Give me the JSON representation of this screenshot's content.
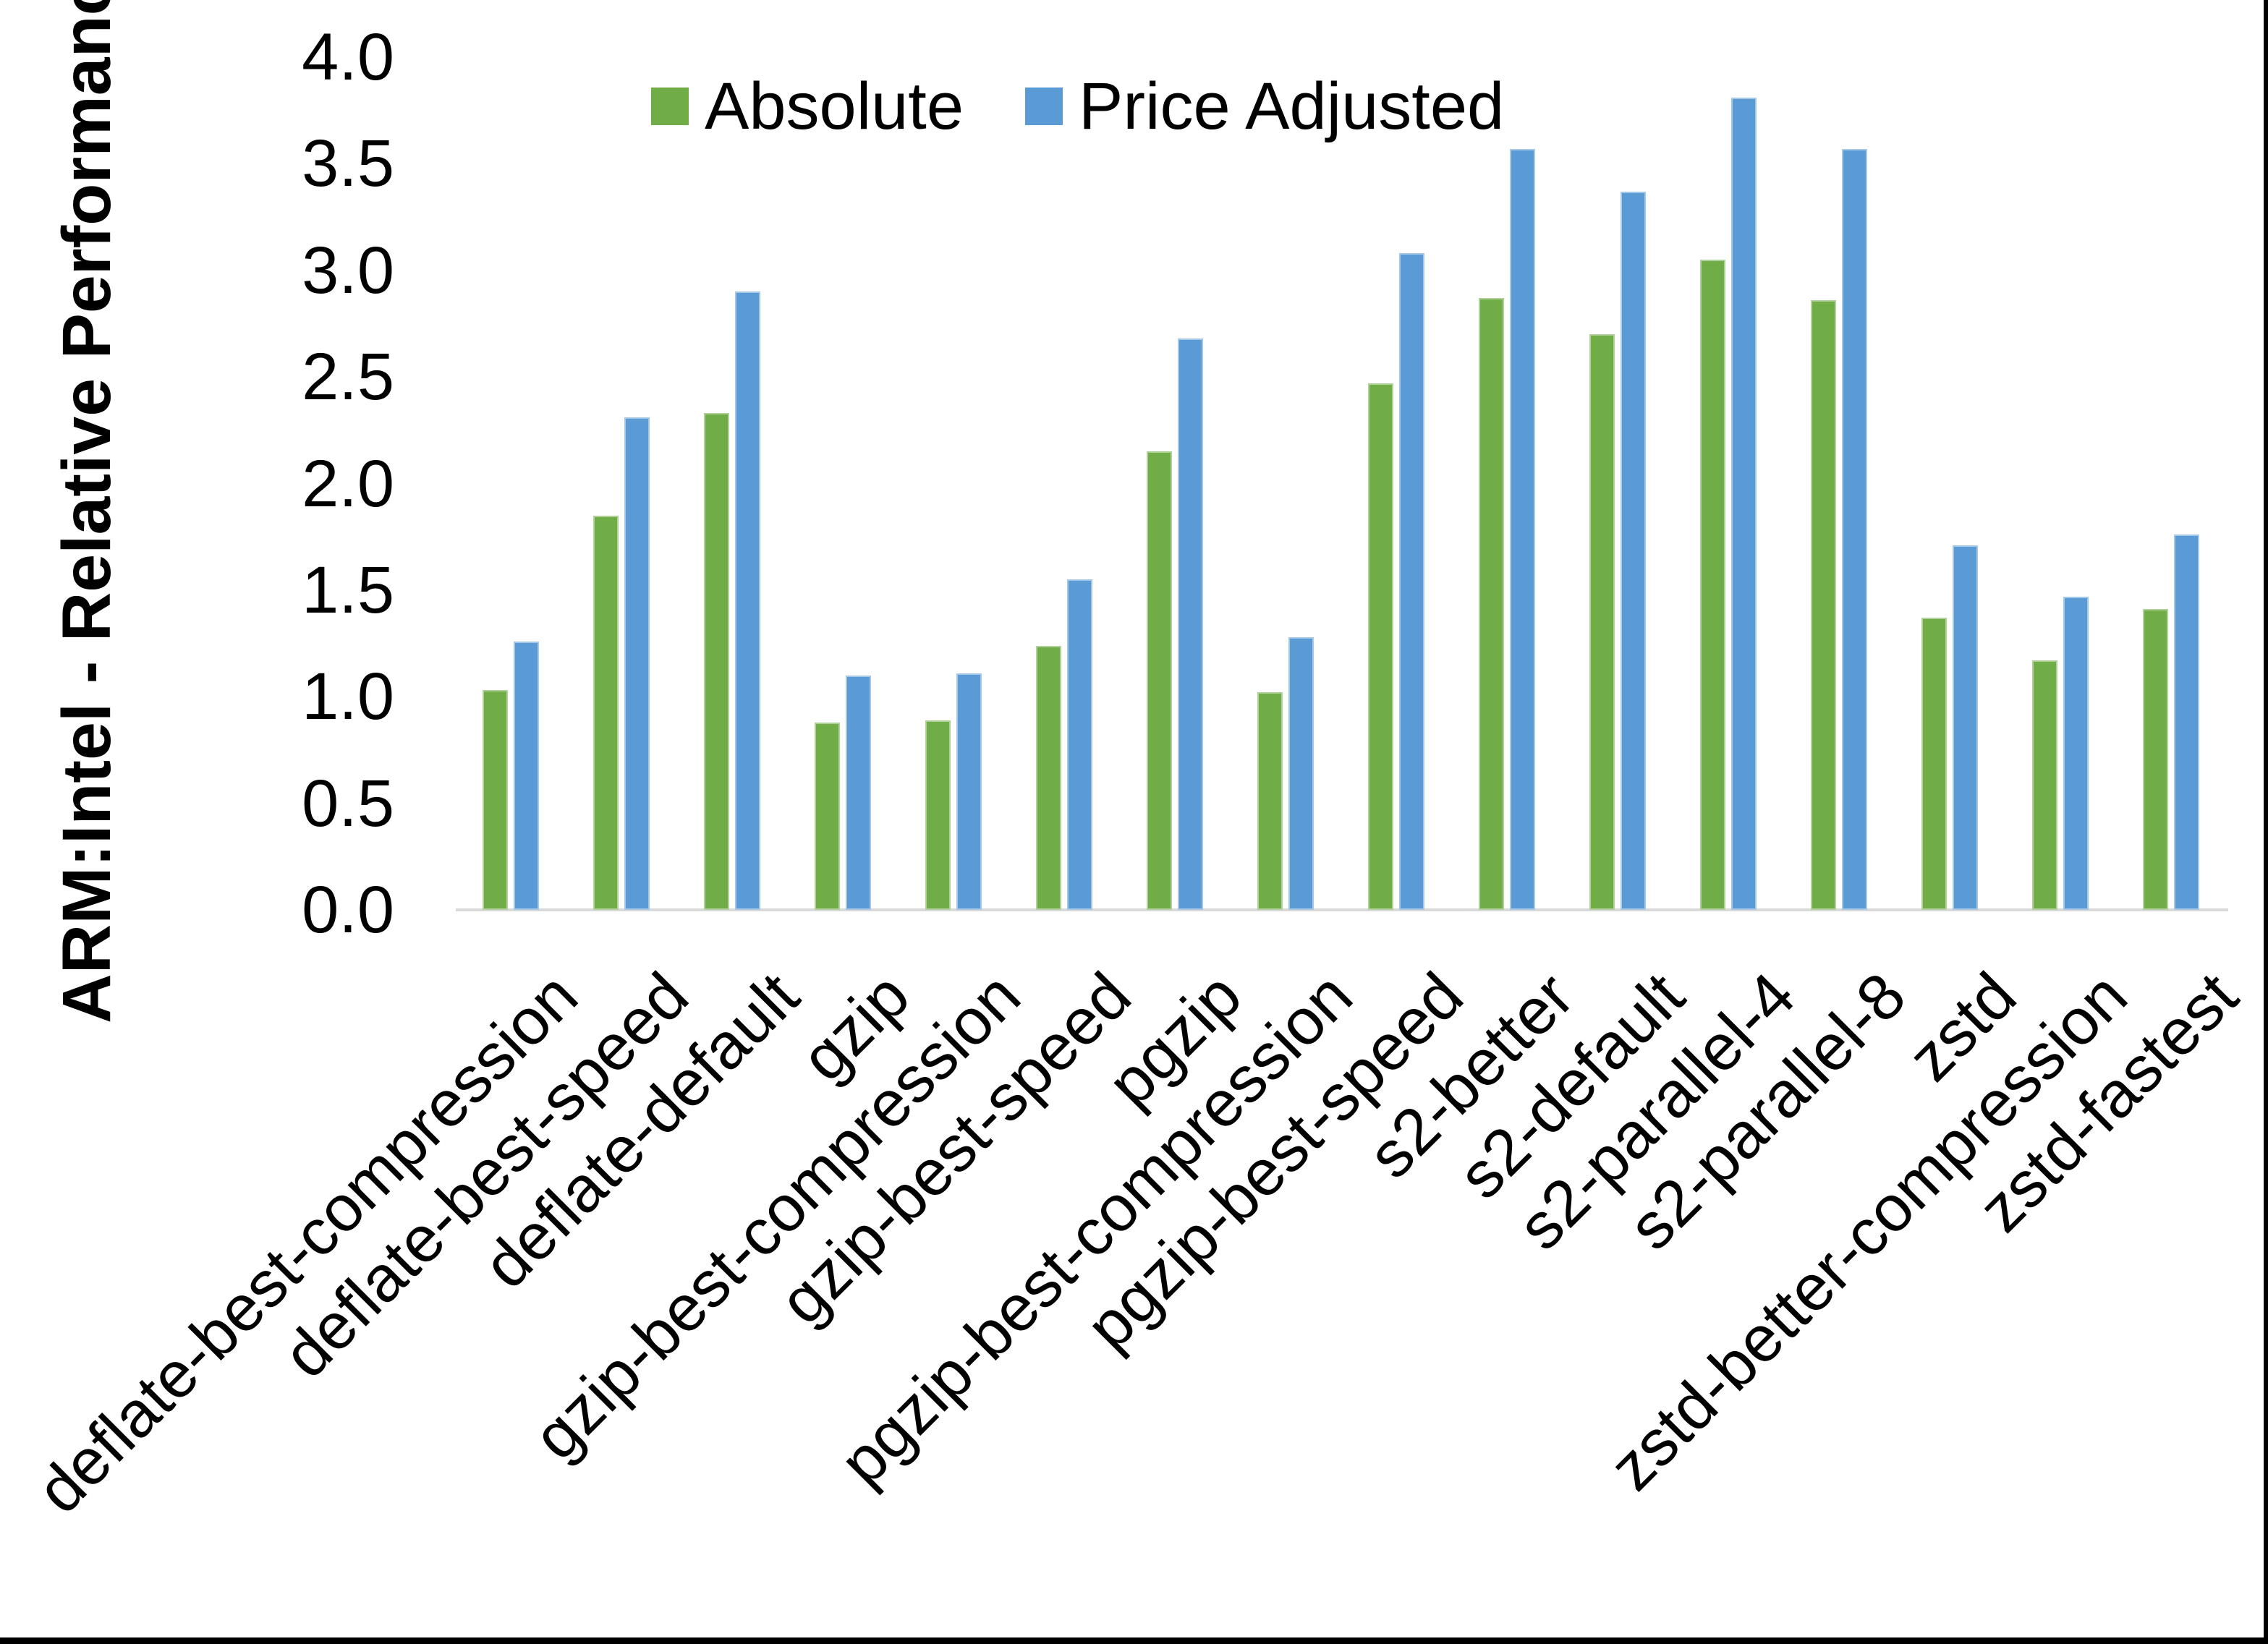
{
  "chart_data": {
    "type": "bar",
    "title": "",
    "xlabel": "",
    "ylabel": "ARM:Intel - Relative Performance",
    "ylim": [
      0.0,
      4.0
    ],
    "ytick_step": 0.5,
    "ytick_labels": [
      "0.0",
      "0.5",
      "1.0",
      "1.5",
      "2.0",
      "2.5",
      "3.0",
      "3.5",
      "4.0"
    ],
    "grid": false,
    "legend_position": "top-center",
    "categories": [
      "deflate-best-compression",
      "deflate-best-speed",
      "deflate-default",
      "gzip",
      "gzip-best-compression",
      "gzip-best-speed",
      "pgzip",
      "pgzip-best-compression",
      "pgzip-best-speed",
      "s2-better",
      "s2-default",
      "s2-parallel-4",
      "s2-parallel-8",
      "zstd",
      "zstd-better-compression",
      "zstd-fastest"
    ],
    "series": [
      {
        "name": "Absolute",
        "color": "#70AD47",
        "values": [
          1.03,
          1.85,
          2.33,
          0.88,
          0.89,
          1.24,
          2.15,
          1.02,
          2.47,
          2.87,
          2.7,
          3.05,
          2.86,
          1.37,
          1.17,
          1.41
        ]
      },
      {
        "name": "Price Adjusted",
        "color": "#5B9BD5",
        "values": [
          1.26,
          2.31,
          2.9,
          1.1,
          1.11,
          1.55,
          2.68,
          1.28,
          3.08,
          3.57,
          3.37,
          3.81,
          3.57,
          1.71,
          1.47,
          1.76
        ]
      }
    ]
  },
  "colors": {
    "background": "#ffffff",
    "axis_line": "#d9d9d9",
    "text": "#000000",
    "frame_border": "#000000"
  }
}
